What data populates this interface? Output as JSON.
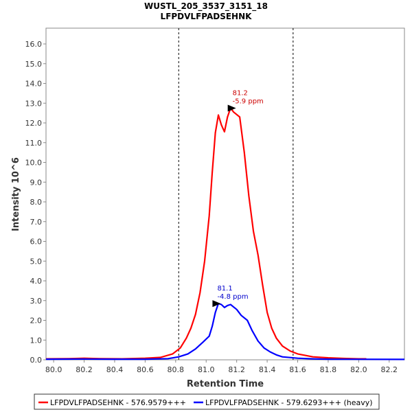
{
  "chart_data": {
    "type": "line",
    "title": "WUSTL_205_3537_3151_18",
    "subtitle": "LFPDVLFPADSEHNK",
    "xlabel": "Retention Time",
    "ylabel": "Intensity 10^6",
    "xlim": [
      79.95,
      82.3
    ],
    "ylim": [
      0,
      16.8
    ],
    "x_ticks": [
      "80.0",
      "80.2",
      "80.4",
      "80.6",
      "80.8",
      "81.0",
      "81.2",
      "81.4",
      "81.6",
      "81.8",
      "82.0",
      "82.2"
    ],
    "y_ticks": [
      "0.0",
      "1.0",
      "2.0",
      "3.0",
      "4.0",
      "5.0",
      "6.0",
      "7.0",
      "8.0",
      "9.0",
      "10.0",
      "11.0",
      "12.0",
      "13.0",
      "14.0",
      "15.0",
      "16.0"
    ],
    "vlines": [
      80.82,
      81.57
    ],
    "grid": false,
    "legend_position": "bottom",
    "series": [
      {
        "name": "LFPDVLFPADSEHNK - 576.9579+++",
        "color": "#ff0000",
        "points": [
          [
            79.95,
            0.05
          ],
          [
            80.1,
            0.06
          ],
          [
            80.2,
            0.08
          ],
          [
            80.3,
            0.06
          ],
          [
            80.45,
            0.05
          ],
          [
            80.6,
            0.08
          ],
          [
            80.7,
            0.12
          ],
          [
            80.78,
            0.3
          ],
          [
            80.83,
            0.6
          ],
          [
            80.87,
            1.1
          ],
          [
            80.9,
            1.6
          ],
          [
            80.93,
            2.3
          ],
          [
            80.96,
            3.4
          ],
          [
            80.99,
            5.0
          ],
          [
            81.02,
            7.3
          ],
          [
            81.04,
            9.5
          ],
          [
            81.06,
            11.5
          ],
          [
            81.08,
            12.4
          ],
          [
            81.1,
            11.9
          ],
          [
            81.12,
            11.55
          ],
          [
            81.14,
            12.3
          ],
          [
            81.16,
            12.75
          ],
          [
            81.18,
            12.55
          ],
          [
            81.22,
            12.3
          ],
          [
            81.25,
            10.5
          ],
          [
            81.28,
            8.3
          ],
          [
            81.31,
            6.5
          ],
          [
            81.34,
            5.3
          ],
          [
            81.37,
            3.8
          ],
          [
            81.4,
            2.4
          ],
          [
            81.43,
            1.6
          ],
          [
            81.46,
            1.1
          ],
          [
            81.5,
            0.7
          ],
          [
            81.55,
            0.45
          ],
          [
            81.6,
            0.3
          ],
          [
            81.7,
            0.15
          ],
          [
            81.8,
            0.1
          ],
          [
            81.9,
            0.07
          ],
          [
            82.0,
            0.05
          ],
          [
            82.05,
            0.05
          ]
        ]
      },
      {
        "name": "LFPDVLFPADSEHNK - 579.6293+++ (heavy)",
        "color": "#0000ff",
        "points": [
          [
            79.95,
            0.03
          ],
          [
            80.2,
            0.04
          ],
          [
            80.4,
            0.03
          ],
          [
            80.6,
            0.03
          ],
          [
            80.75,
            0.06
          ],
          [
            80.82,
            0.15
          ],
          [
            80.88,
            0.3
          ],
          [
            80.93,
            0.55
          ],
          [
            80.98,
            0.9
          ],
          [
            81.02,
            1.2
          ],
          [
            81.04,
            1.7
          ],
          [
            81.06,
            2.4
          ],
          [
            81.08,
            2.85
          ],
          [
            81.1,
            2.8
          ],
          [
            81.12,
            2.65
          ],
          [
            81.14,
            2.75
          ],
          [
            81.16,
            2.8
          ],
          [
            81.2,
            2.55
          ],
          [
            81.23,
            2.25
          ],
          [
            81.27,
            2.0
          ],
          [
            81.3,
            1.5
          ],
          [
            81.34,
            0.95
          ],
          [
            81.38,
            0.6
          ],
          [
            81.42,
            0.4
          ],
          [
            81.46,
            0.25
          ],
          [
            81.5,
            0.15
          ],
          [
            81.6,
            0.08
          ],
          [
            81.7,
            0.05
          ],
          [
            81.8,
            0.03
          ],
          [
            82.3,
            0.02
          ]
        ]
      }
    ],
    "annotations": [
      {
        "series": 0,
        "x": 81.2,
        "y": 12.75,
        "line1": "81.2",
        "line2": "-5.9 ppm",
        "color": "#cc0000"
      },
      {
        "series": 1,
        "x": 81.1,
        "y": 2.85,
        "line1": "81.1",
        "line2": "-4.8 ppm",
        "color": "#0000cc"
      }
    ]
  }
}
